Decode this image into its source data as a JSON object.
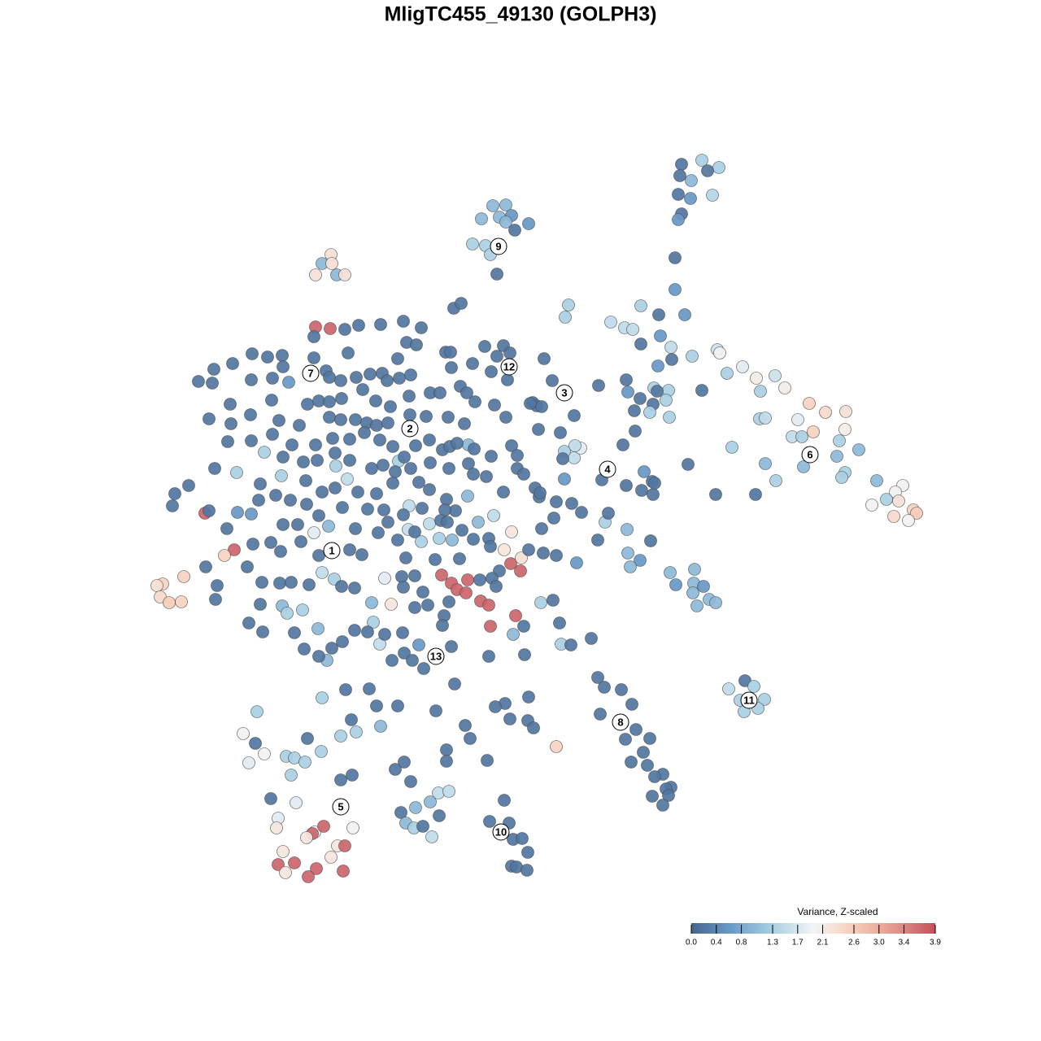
{
  "chart_data": {
    "type": "scatter",
    "title": "MligTC455_49130 (GOLPH3)",
    "xlim": [
      0,
      1280
    ],
    "ylim": [
      1280,
      0
    ],
    "clim": [
      0,
      3.9
    ],
    "cmap": [
      "#46658c",
      "#6a9ccb",
      "#a9d0e3",
      "#f3f5f7",
      "#f7cdb7",
      "#e4968c",
      "#c24f5c"
    ],
    "colorbar": {
      "title": "Variance, Z-scaled",
      "ticks": [
        {
          "value": 0,
          "label": "0.0"
        },
        0.4,
        0.8,
        1.3,
        1.7,
        2.1,
        2.6,
        {
          "value": 3,
          "label": "3.0"
        },
        3.4,
        3.9
      ]
    },
    "cluster_labels": {
      "text": [
        "1",
        "2",
        "3",
        "4",
        "5",
        "6",
        "7",
        "8",
        "9",
        "10",
        "11",
        "12",
        "13"
      ],
      "x": [
        408,
        504,
        694,
        747,
        419,
        996,
        382,
        763,
        613,
        616,
        921,
        626,
        536
      ],
      "y": [
        677,
        527,
        483,
        577,
        992,
        559,
        459,
        888,
        303,
        1023,
        861,
        451,
        807
      ]
    },
    "x": [
      838,
      863,
      884,
      870,
      836,
      850,
      834,
      849,
      876,
      838,
      834,
      830,
      830,
      606,
      622,
      592,
      614,
      629,
      650,
      622,
      633,
      581,
      597,
      603,
      611,
      407,
      396,
      408,
      388,
      414,
      424,
      699,
      695,
      751,
      788,
      810,
      842,
      768,
      778,
      812,
      788,
      825,
      851,
      826,
      882,
      885,
      809,
      894,
      913,
      930,
      953,
      965,
      935,
      863,
      804,
      822,
      808,
      819,
      787,
      803,
      799,
      823,
      780,
      772,
      770,
      736,
      781,
      766,
      995,
      1015,
      1040,
      981,
      1000,
      1039,
      934,
      941,
      974,
      986,
      1032,
      1056,
      900,
      1029,
      988,
      941,
      1039,
      1035,
      954,
      1078,
      1110,
      1101,
      1090,
      1072,
      1105,
      1123,
      1127,
      1117,
      1099,
      880,
      929,
      846,
      200,
      193,
      226,
      197,
      208,
      223,
      916,
      896,
      927,
      910,
      940,
      915,
      932,
      735,
      743,
      764,
      777,
      738,
      782,
      769,
      799,
      791,
      776,
      796,
      815,
      805,
      825,
      819,
      822,
      802,
      815,
      824,
      854,
      831,
      853,
      865,
      852,
      872,
      880,
      857,
      771,
      772,
      787,
      775,
      709,
      744,
      748,
      735,
      800,
      792,
      802,
      770,
      789,
      803,
      805,
      715,
      703,
      684,
      681,
      706,
      714,
      707,
      694,
      692,
      694,
      706,
      689,
      740,
      684,
      665,
      680,
      690,
      702,
      727,
      688,
      644,
      631,
      634,
      645,
      603,
      601,
      555,
      521,
      482,
      497,
      515,
      467,
      459,
      495,
      507,
      559,
      536,
      489,
      463,
      454,
      425,
      396,
      432,
      468,
      438,
      419,
      378,
      395,
      316,
      299,
      314,
      325,
      306,
      352,
      362,
      375,
      358,
      333,
      364,
      419,
      433,
      342,
      340,
      387,
      398,
      384,
      377,
      434,
      415,
      424,
      348,
      407,
      342,
      362,
      389,
      422,
      351,
      379,
      549,
      549,
      599,
      486,
      497,
      505,
      539,
      552,
      529,
      511,
      493,
      540,
      499,
      509,
      520,
      531,
      620,
      602,
      626,
      631,
      642,
      649,
      629,
      635,
      648,
      572,
      578,
      621,
      627,
      649,
      656,
      650,
      609,
      388,
      406,
      252,
      288,
      276,
      543,
      555,
      562,
      575,
      573,
      591,
      601,
      628,
      640,
      641,
      629,
      620,
      481,
      473,
      325,
      291,
      346,
      355,
      292,
      309,
      404,
      386,
      413,
      427,
      396,
      411,
      347,
      353,
      372,
      391,
      402,
      457,
      518,
      540,
      556,
      528,
      502,
      575,
      588,
      607,
      576,
      490,
      503,
      558,
      567,
      424,
      441,
      468,
      496,
      518,
      386,
      500,
      512,
      619,
      596,
      611,
      627,
      548,
      554,
      489,
      428,
      386,
      347,
      329,
      310,
      286,
      263,
      244,
      261,
      309,
      335,
      348,
      401,
      405,
      419,
      438,
      455,
      470,
      491,
      505,
      476,
      555,
      566,
      581,
      604,
      624,
      334,
      378,
      392,
      405,
      420,
      446,
      462,
      480,
      503,
      529,
      541,
      574,
      584,
      608,
      622,
      655,
      660,
      257,
      283,
      284,
      308,
      343,
      368,
      405,
      419,
      437,
      451,
      463,
      477,
      504,
      524,
      551,
      571,
      280,
      309,
      335,
      359,
      388,
      409,
      430,
      448,
      467,
      483,
      497,
      511,
      528,
      544,
      553,
      562,
      583,
      604,
      629,
      636,
      264,
      348,
      373,
      390,
      412,
      430,
      457,
      471,
      486,
      505,
      529,
      552,
      576,
      598,
      636,
      644,
      215,
      232,
      212,
      320,
      339,
      357,
      376,
      396,
      412,
      440,
      463,
      483,
      515,
      528,
      549,
      560,
      582,
      619,
      658,
      663,
      257,
      279,
      318,
      348,
      366,
      377,
      392,
      421,
      437,
      452,
      472,
      496,
      519,
      547,
      542,
      550,
      568,
      601,
      664,
      666,
      311,
      333,
      345,
      370,
      392,
      430,
      445,
      465,
      477,
      489,
      510,
      499,
      535,
      565,
      582,
      603,
      614,
      605,
      650,
      668,
      684,
      253,
      267,
      265,
      304,
      322,
      344,
      358,
      380,
      420,
      436,
      494,
      510,
      496,
      520,
      526,
      546,
      544,
      552,
      590,
      610,
      306,
      323,
      320,
      362,
      374,
      392,
      408,
      421,
      436,
      452,
      473,
      510,
      669,
      679,
      666,
      662,
      652
    ],
    "y": [
      202,
      197,
      206,
      210,
      216,
      222,
      239,
      244,
      240,
      263,
      270,
      317,
      356,
      253,
      252,
      269,
      267,
      265,
      275,
      273,
      283,
      300,
      302,
      313,
      337,
      313,
      324,
      324,
      338,
      338,
      338,
      375,
      390,
      396,
      376,
      387,
      387,
      403,
      405,
      413,
      423,
      427,
      438,
      442,
      430,
      434,
      450,
      459,
      451,
      465,
      462,
      477,
      481,
      480,
      477,
      480,
      481,
      492,
      490,
      497,
      507,
      513,
      505,
      482,
      467,
      474,
      530,
      547,
      496,
      507,
      506,
      516,
      531,
      528,
      515,
      514,
      537,
      537,
      542,
      553,
      550,
      561,
      574,
      570,
      581,
      587,
      591,
      591,
      597,
      605,
      614,
      621,
      616,
      627,
      631,
      640,
      635,
      608,
      608,
      571,
      718,
      720,
      709,
      734,
      741,
      740,
      837,
      847,
      844,
      861,
      860,
      875,
      871,
      833,
      845,
      848,
      866,
      878,
      897,
      909,
      908,
      925,
      937,
      941,
      952,
      955,
      968,
      970,
      978,
      979,
      990,
      704,
      700,
      719,
      717,
      721,
      729,
      737,
      741,
      745,
      651,
      680,
      689,
      697,
      692,
      642,
      631,
      664,
      665,
      580,
      592,
      597,
      603,
      608,
      594,
      630,
      619,
      617,
      637,
      563,
      551,
      548,
      555,
      564,
      589,
      511,
      532,
      590,
      918,
      741,
      738,
      792,
      793,
      785,
      766,
      770,
      780,
      757,
      805,
      770,
      807,
      795,
      822,
      812,
      803,
      793,
      792,
      765,
      778,
      812,
      841,
      874,
      868,
      868,
      847,
      848,
      858,
      885,
      893,
      900,
      905,
      908,
      924,
      875,
      902,
      914,
      927,
      938,
      930,
      932,
      937,
      953,
      982,
      987,
      959,
      953,
      1006,
      1018,
      1023,
      1016,
      1025,
      1030,
      1018,
      1040,
      1040,
      1047,
      1054,
      1063,
      1061,
      1068,
      1071,
      1073,
      1078,
      922,
      936,
      935,
      946,
      937,
      961,
      975,
      973,
      986,
      993,
      999,
      1003,
      1012,
      1018,
      1016,
      1029,
      984,
      1010,
      1012,
      1032,
      1031,
      1048,
      1065,
      1066,
      1070,
      892,
      908,
      865,
      884,
      886,
      895,
      857,
      869,
      402,
      404,
      631,
      676,
      683,
      707,
      717,
      725,
      713,
      729,
      739,
      744,
      693,
      702,
      686,
      654,
      676,
      743,
      711,
      556,
      581,
      585,
      470,
      630,
      632,
      647,
      655,
      573,
      589,
      704,
      712,
      745,
      754,
      750,
      773,
      812,
      741,
      666,
      662,
      664,
      644,
      651,
      610,
      642,
      634,
      547,
      567,
      622,
      379,
      373,
      405,
      400,
      399,
      395,
      403,
      414,
      421,
      424,
      425,
      426,
      438,
      434,
      433,
      433,
      441,
      434,
      440,
      437,
      439,
      435,
      447,
      454,
      469,
      471,
      467,
      465,
      451,
      456,
      464,
      468,
      464,
      460,
      459,
      465,
      461,
      468,
      452,
      475,
      447,
      457,
      467,
      492,
      497,
      493,
      494,
      490,
      479,
      493,
      500,
      487,
      483,
      483,
      483,
      494,
      498,
      513,
      495,
      499,
      515,
      497,
      521,
      510,
      517,
      523,
      513,
      516,
      516,
      520,
      523,
      520,
      510,
      512,
      513,
      521,
      543,
      542,
      534,
      547,
      547,
      539,
      540,
      532,
      541,
      549,
      562,
      548,
      541,
      553,
      549,
      545,
      552,
      561,
      548,
      560,
      576,
      562,
      568,
      566,
      557,
      566,
      576,
      572,
      580,
      576,
      569,
      576,
      570,
      586,
      576,
      583,
      607,
      597,
      622,
      595,
      609,
      615,
      591,
      605,
      600,
      605,
      607,
      594,
      593,
      602,
      614,
      628,
      583,
      605,
      600,
      611,
      628,
      650,
      615,
      645,
      645,
      620,
      634,
      624,
      650,
      626,
      627,
      633,
      625,
      627,
      640,
      642,
      652,
      662,
      606,
      650,
      669,
      667,
      678,
      666,
      683,
      676,
      682,
      655,
      642,
      664,
      654,
      686,
      688,
      687,
      663,
      672,
      702,
      711,
      676,
      680,
      683,
      697,
      720,
      737,
      697,
      716,
      717,
      716,
      719,
      721,
      723,
      709,
      708,
      722,
      728,
      744,
      757,
      769,
      740,
      713,
      721,
      766,
      777,
      743,
      778,
      798,
      807,
      797,
      789,
      775,
      777,
      780,
      747,
      441,
      468,
      500,
      528,
      496
    ],
    "values": [
      0.2,
      1.3,
      1.3,
      0.2,
      0.2,
      1.0,
      0.2,
      0.6,
      1.4,
      0.2,
      0.6,
      0.2,
      0.6,
      1.0,
      1.0,
      1.0,
      1.0,
      0.6,
      0.6,
      1.0,
      0.2,
      1.3,
      1.3,
      1.3,
      0.2,
      2.3,
      1.0,
      2.3,
      2.3,
      1.0,
      2.3,
      1.3,
      1.3,
      1.5,
      1.3,
      0.2,
      0.6,
      1.5,
      1.5,
      0.6,
      0.2,
      1.5,
      1.3,
      0.2,
      1.6,
      2.0,
      0.6,
      1.3,
      1.8,
      2.1,
      1.6,
      2.1,
      1.3,
      0.2,
      1.3,
      1.3,
      0.2,
      1.3,
      0.2,
      0.2,
      1.3,
      1.3,
      0.2,
      0.6,
      0.2,
      0.2,
      0.2,
      0.2,
      2.5,
      2.4,
      2.3,
      1.8,
      2.5,
      2.1,
      1.3,
      1.5,
      1.5,
      1.3,
      1.3,
      1.0,
      1.3,
      1.0,
      1.0,
      1.0,
      1.3,
      1.3,
      1.3,
      1.0,
      2.0,
      2.0,
      1.3,
      2.0,
      2.3,
      2.5,
      2.6,
      2.0,
      2.4,
      0.2,
      0.2,
      0.2,
      2.5,
      2.3,
      2.5,
      2.4,
      2.6,
      2.5,
      0.2,
      1.5,
      1.3,
      1.3,
      1.3,
      1.3,
      1.3,
      0.2,
      0.2,
      0.2,
      0.2,
      0.2,
      0.2,
      0.2,
      0.2,
      0.2,
      0.2,
      0.2,
      0.2,
      0.2,
      0.2,
      0.2,
      0.2,
      0.2,
      0.2,
      1.0,
      1.0,
      0.6,
      1.0,
      0.6,
      1.0,
      1.0,
      1.0,
      1.0,
      1.0,
      1.0,
      0.6,
      1.0,
      0.6,
      1.3,
      0.2,
      0.2,
      0.2,
      0.6,
      0.2,
      0.2,
      0.2,
      0.2,
      0.2,
      0.2,
      0.2,
      0.2,
      0.2,
      1.5,
      1.8,
      1.5,
      1.3,
      0.2,
      0.6,
      0.2,
      0.2,
      0.2,
      2.5,
      1.3,
      0.2,
      1.3,
      0.2,
      0.2,
      0.2,
      0.2,
      1.0,
      3.7,
      0.2,
      3.7,
      0.2,
      0.2,
      0.2,
      0.2,
      0.2,
      0.6,
      1.5,
      1.3,
      0.2,
      0.2,
      0.2,
      0.2,
      0.2,
      0.2,
      0.2,
      0.2,
      1.3,
      0.2,
      1.0,
      1.3,
      1.3,
      0.2,
      1.3,
      1.3,
      2.0,
      0.2,
      2.0,
      1.8,
      1.3,
      1.3,
      1.3,
      1.3,
      0.2,
      1.8,
      0.2,
      0.2,
      1.8,
      2.2,
      2.0,
      3.7,
      3.7,
      2.2,
      2.0,
      2.2,
      3.7,
      2.2,
      2.2,
      3.7,
      3.7,
      3.7,
      3.7,
      2.2,
      3.7,
      0.2,
      0.2,
      0.2,
      0.2,
      0.2,
      0.2,
      1.5,
      1.5,
      1.0,
      1.0,
      0.2,
      0.2,
      1.0,
      1.3,
      0.2,
      1.5,
      0.2,
      0.2,
      0.2,
      0.2,
      0.2,
      0.2,
      0.2,
      0.2,
      0.2,
      0.2,
      0.2,
      0.2,
      0.2,
      0.2,
      0.2,
      0.2,
      0.2,
      3.7,
      3.7,
      3.7,
      3.7,
      2.5,
      3.7,
      3.7,
      3.7,
      3.7,
      3.7,
      3.7,
      3.7,
      3.7,
      3.7,
      2.3,
      2.2,
      2.2,
      2.2,
      1.8,
      1.3,
      1.3,
      1.3,
      0.6,
      0.6,
      0.6,
      1.0,
      1.8,
      1.3,
      1.5,
      1.5,
      1.3,
      1.0,
      1.3,
      1.3,
      1.0,
      1.0,
      1.0,
      1.3,
      1.3,
      1.0,
      1.5,
      1.5,
      1.0,
      1.0,
      1.5,
      1.0,
      1.3,
      1.5,
      0.2,
      0.2,
      0.2,
      0.2,
      0.2,
      0.2,
      0.2,
      0.2,
      0.2,
      0.2,
      0.2,
      0.2,
      0.2,
      0.2,
      0.2,
      0.2,
      0.2,
      0.2,
      0.2,
      0.2,
      0.2,
      0.2,
      0.2,
      0.2,
      0.2,
      0.2,
      0.2,
      0.2,
      0.2,
      0.2,
      0.2,
      0.2,
      0.2,
      0.2,
      0.2,
      0.2,
      0.2,
      0.2,
      0.2,
      0.2,
      0.2,
      0.2,
      0.2,
      0.2,
      0.2,
      0.2,
      0.2,
      0.2,
      0.2,
      0.2,
      0.2,
      0.2,
      0.2,
      0.2,
      0.2,
      0.2,
      0.2,
      0.2,
      0.2,
      0.2,
      0.2,
      0.2,
      0.2,
      0.2,
      0.2,
      0.2,
      0.2,
      0.2,
      0.2,
      0.2,
      0.2,
      0.2,
      0.2,
      0.2,
      0.2,
      0.2,
      0.2,
      0.2,
      0.2,
      0.2,
      0.2,
      0.2,
      0.2,
      0.2,
      0.2,
      0.2,
      0.2,
      0.2,
      0.2,
      0.2,
      0.2,
      0.2,
      0.2,
      0.2,
      0.2,
      0.2,
      0.2,
      0.2,
      0.2,
      0.2,
      0.2,
      0.2,
      0.2,
      0.2,
      0.2,
      0.2,
      0.2,
      0.2,
      0.2,
      0.2,
      0.2,
      0.2,
      0.2,
      0.2,
      0.2,
      0.2,
      0.2,
      0.2,
      0.2,
      0.2,
      0.2,
      0.2,
      0.2,
      0.2,
      0.2,
      0.2,
      0.2,
      0.2,
      0.2,
      0.2,
      0.2,
      0.2,
      0.2,
      0.2,
      0.2,
      0.2,
      0.2,
      0.2,
      0.2,
      0.2,
      0.2,
      0.2,
      0.2,
      0.2,
      0.2,
      0.2,
      0.2,
      0.2,
      0.2,
      0.2,
      0.2,
      0.2,
      0.2,
      0.2,
      0.2,
      0.2,
      0.2,
      0.2,
      0.2,
      0.2,
      0.2,
      0.2,
      0.2,
      0.2,
      0.2,
      0.2,
      0.2,
      0.2,
      0.2,
      0.2,
      0.2,
      0.2,
      0.2,
      0.2,
      0.2,
      0.2,
      0.2,
      0.2,
      0.2,
      0.2,
      0.2,
      0.2,
      0.2,
      0.2,
      0.2,
      0.2,
      0.2,
      0.2,
      0.2,
      0.2,
      0.2,
      0.2,
      0.2,
      0.2,
      0.2,
      0.2,
      0.2,
      0.2,
      0.2,
      0.2,
      0.2,
      0.2,
      0.2,
      0.2,
      0.2,
      0.2,
      0.2,
      0.2,
      0.2,
      0.2
    ]
  }
}
